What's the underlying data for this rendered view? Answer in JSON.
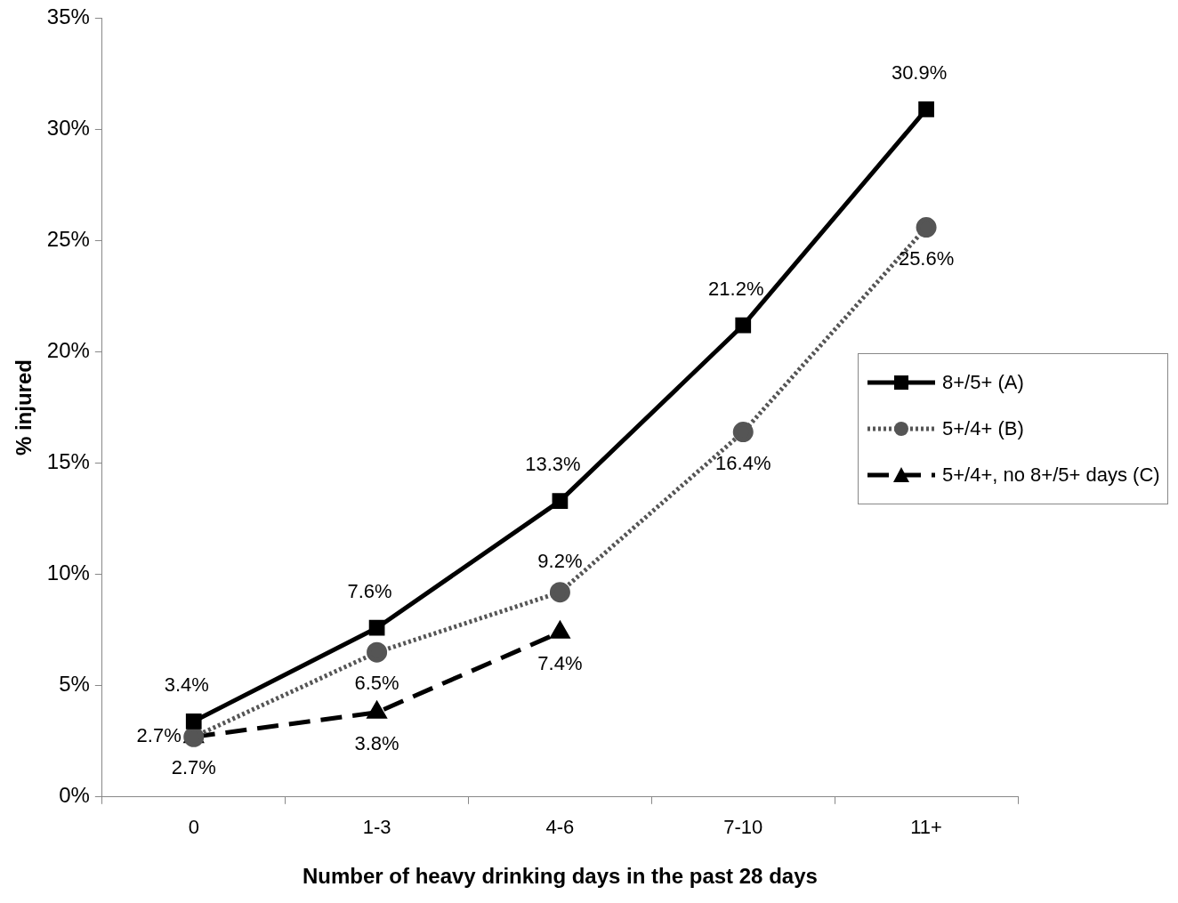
{
  "chart_data": {
    "type": "line",
    "xlabel": "Number of heavy drinking days in the past 28 days",
    "ylabel": "% injured",
    "categories": [
      "0",
      "1-3",
      "4-6",
      "7-10",
      "11+"
    ],
    "series": [
      {
        "name": "8+/5+ (A)",
        "color": "#000000",
        "values": [
          3.4,
          7.6,
          13.3,
          21.2,
          30.9
        ],
        "value_labels": [
          "3.4%",
          "7.6%",
          "13.3%",
          "21.2%",
          "30.9%"
        ],
        "marker": "square",
        "line_style": "solid"
      },
      {
        "name": "5+/4+ (B)",
        "color": "#555555",
        "values": [
          2.7,
          6.5,
          9.2,
          16.4,
          25.6
        ],
        "value_labels": [
          "2.7%",
          "6.5%",
          "9.2%",
          "16.4%",
          "25.6%"
        ],
        "marker": "circle",
        "line_style": "dotted"
      },
      {
        "name": "5+/4+, no 8+/5+ days (C)",
        "color": "#000000",
        "values": [
          2.7,
          3.8,
          7.4,
          null,
          null
        ],
        "value_labels": [
          "2.7%",
          "3.8%",
          "7.4%",
          null,
          null
        ],
        "marker": "triangle",
        "line_style": "dashed"
      }
    ],
    "ylim": [
      0,
      35
    ],
    "yticks": [
      {
        "value": 0,
        "label": "0%"
      },
      {
        "value": 5,
        "label": "5%"
      },
      {
        "value": 10,
        "label": "10%"
      },
      {
        "value": 15,
        "label": "15%"
      },
      {
        "value": 20,
        "label": "20%"
      },
      {
        "value": 25,
        "label": "25%"
      },
      {
        "value": 30,
        "label": "30%"
      },
      {
        "value": 35,
        "label": "35%"
      }
    ],
    "grid": false,
    "legend": "right"
  }
}
